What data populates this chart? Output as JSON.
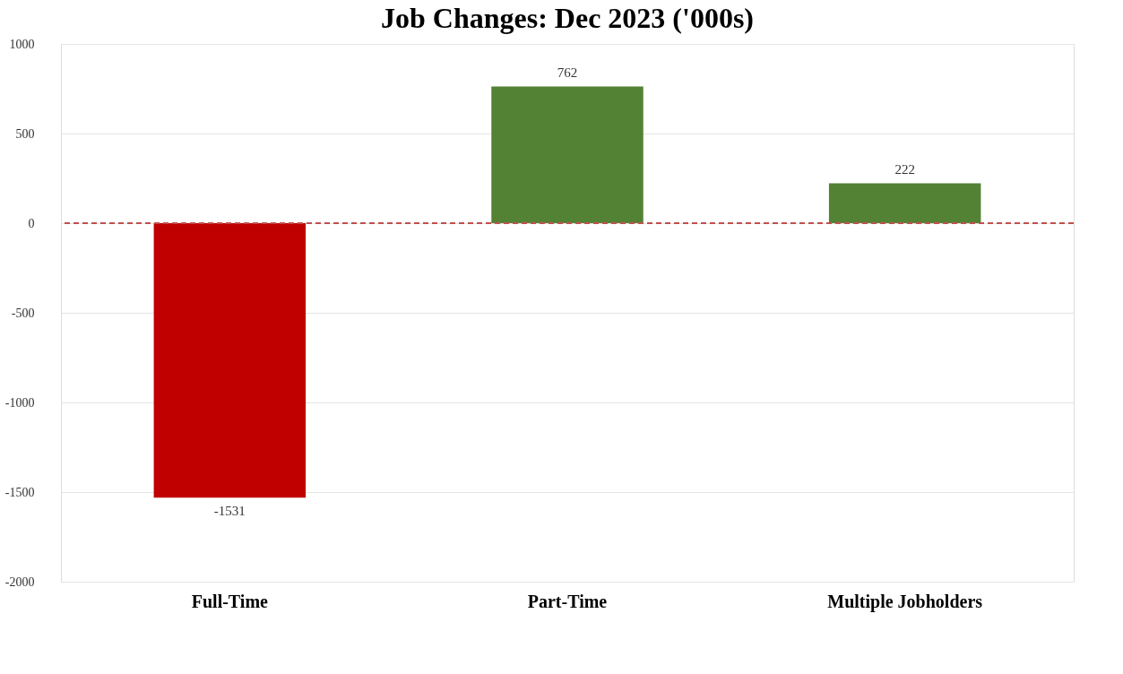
{
  "chart_data": {
    "type": "bar",
    "title": "Job Changes: Dec 2023 ('000s)",
    "categories": [
      "Full-Time",
      "Part-Time",
      "Multiple Jobholders"
    ],
    "values": [
      -1531,
      762,
      222
    ],
    "colors": [
      "#c00000",
      "#548235",
      "#548235"
    ],
    "ylim": [
      -2000,
      1000
    ],
    "yticks": [
      -2000,
      -1500,
      -1000,
      -500,
      0,
      500,
      1000
    ],
    "grid": "y",
    "data_labels": true,
    "ref_lines": [
      {
        "axis": "y",
        "value": 0,
        "color": "#c0504d",
        "line_style": "dashed"
      }
    ]
  }
}
